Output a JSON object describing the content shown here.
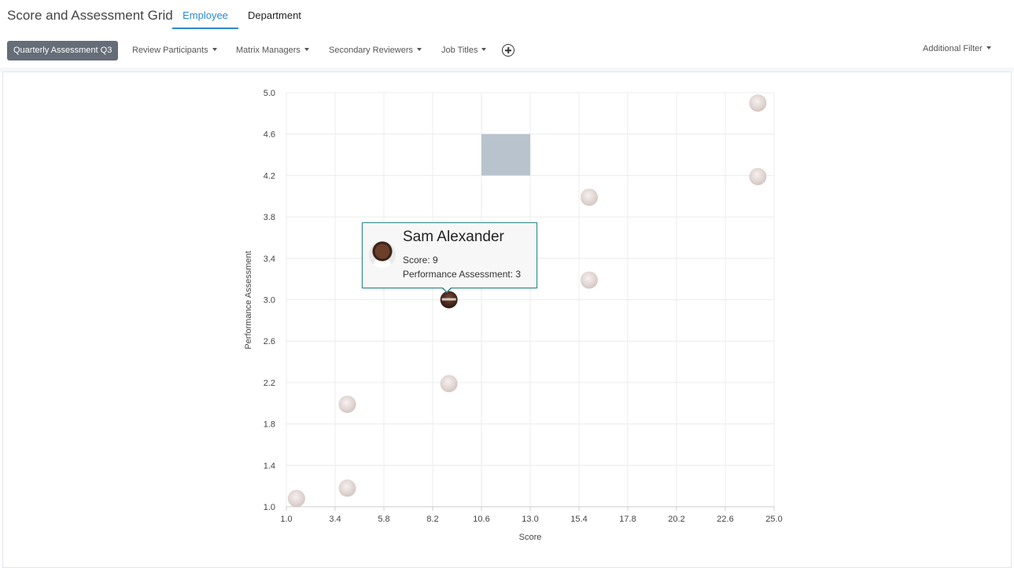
{
  "header": {
    "title": "Score and Assessment Grid",
    "tabs": [
      {
        "label": "Employee",
        "active": true
      },
      {
        "label": "Department",
        "active": false
      }
    ]
  },
  "filters": {
    "active_chip": "Quarterly Assessment Q3",
    "dropdowns": [
      "Review Participants",
      "Matrix Managers",
      "Secondary Reviewers",
      "Job Titles"
    ],
    "additional_filter": "Additional Filter"
  },
  "colors": {
    "accent": "#2a8ad4",
    "chip": "#656d78",
    "highlight_cell": "#b8c3ce",
    "tooltip_border": "#2e8b8b"
  },
  "chart_data": {
    "type": "scatter",
    "xlabel": "Score",
    "ylabel": "Performance Assessment",
    "xlim": [
      1.0,
      25.0
    ],
    "ylim": [
      1.0,
      5.0
    ],
    "x_ticks": [
      "1.0",
      "3.4",
      "5.8",
      "8.2",
      "10.6",
      "13.0",
      "15.4",
      "17.8",
      "20.2",
      "22.6",
      "25.0"
    ],
    "y_ticks": [
      "1.0",
      "1.4",
      "1.8",
      "2.2",
      "2.6",
      "3.0",
      "3.4",
      "3.8",
      "4.2",
      "4.6",
      "5.0"
    ],
    "grid": true,
    "highlighted_cell": {
      "x_range": [
        10.6,
        13.0
      ],
      "y_range": [
        4.2,
        4.6
      ]
    },
    "points": [
      {
        "x": 1.5,
        "y": 1.08,
        "faded": true
      },
      {
        "x": 4.0,
        "y": 1.18,
        "faded": true
      },
      {
        "x": 4.0,
        "y": 1.99,
        "faded": true
      },
      {
        "x": 9.0,
        "y": 2.19,
        "faded": true
      },
      {
        "x": 9.0,
        "y": 3.0,
        "faded": false,
        "selected": true
      },
      {
        "x": 15.9,
        "y": 3.19,
        "faded": true
      },
      {
        "x": 15.9,
        "y": 3.99,
        "faded": true
      },
      {
        "x": 24.2,
        "y": 4.19,
        "faded": true
      },
      {
        "x": 24.2,
        "y": 4.9,
        "faded": true
      }
    ]
  },
  "tooltip": {
    "name": "Sam Alexander",
    "score_line": "Score: 9",
    "assessment_line": "Performance Assessment: 3"
  }
}
